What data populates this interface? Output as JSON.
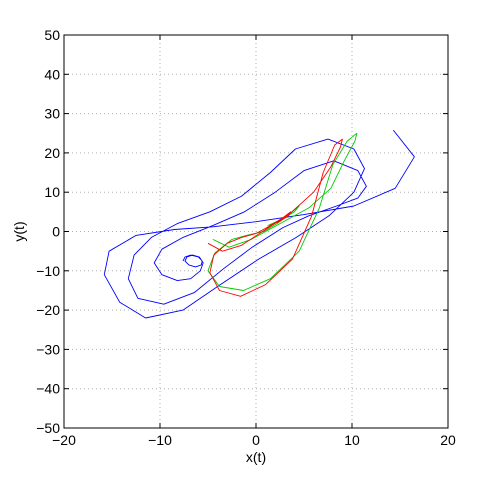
{
  "chart_data": {
    "type": "line",
    "title": "",
    "xlabel": "x(t)",
    "ylabel": "y(t)",
    "xlim": [
      -20,
      20
    ],
    "ylim": [
      -50,
      50
    ],
    "xticks": [
      -20,
      -10,
      0,
      10,
      20
    ],
    "yticks": [
      -50,
      -40,
      -30,
      -20,
      -10,
      0,
      10,
      20,
      30,
      40,
      50
    ],
    "xtick_labels": [
      "−20",
      "−10",
      "0",
      "10",
      "20"
    ],
    "ytick_labels": [
      "−50",
      "−40",
      "−30",
      "−20",
      "−10",
      "0",
      "10",
      "20",
      "30",
      "40",
      "50"
    ],
    "grid": true,
    "series": [
      {
        "color": "#0000ff",
        "x": [
          14.3,
          16.5,
          14.5,
          10.2,
          5.0,
          0.0,
          -4.5,
          -8.5,
          -12.5,
          -15.3,
          -15.8,
          -14.2,
          -11.5,
          -7.6,
          -4.0,
          0.3,
          4.2,
          7.6,
          10.2,
          11.3,
          10.2,
          7.5,
          4.1,
          1.5,
          -1.5,
          -4.8,
          -8.2,
          -10.9,
          -12.7,
          -13.3,
          -12.3,
          -9.6,
          -6.4,
          -3.4,
          -0.4,
          2.8,
          5.5,
          8.4,
          10.6,
          11.5,
          10.6,
          8.1,
          5.0,
          2.0,
          -1.2,
          -4.5,
          -7.6,
          -9.8,
          -10.6,
          -9.8,
          -8.2,
          -6.8,
          -5.8,
          -5.5,
          -5.9,
          -6.6,
          -7.2,
          -7.4,
          -7.0,
          -6.3,
          -5.7,
          -5.6,
          -6.0,
          -6.8,
          -7.4,
          -7.6
        ],
        "y": [
          25.8,
          19.0,
          11.0,
          6.5,
          4.3,
          2.5,
          1.2,
          0.5,
          -1.0,
          -5.0,
          -11.0,
          -18.0,
          -22.0,
          -20.0,
          -14.0,
          -7.0,
          -1.5,
          4.0,
          10.0,
          16.0,
          21.0,
          23.5,
          21.0,
          15.0,
          9.0,
          5.0,
          2.0,
          -1.5,
          -6.0,
          -12.0,
          -17.0,
          -18.5,
          -15.5,
          -9.5,
          -4.0,
          1.0,
          4.0,
          6.5,
          8.5,
          11.5,
          15.5,
          18.0,
          15.5,
          10.0,
          5.0,
          1.5,
          -1.5,
          -4.5,
          -8.0,
          -11.0,
          -12.5,
          -12.0,
          -10.0,
          -8.0,
          -6.5,
          -6.0,
          -6.5,
          -7.5,
          -8.5,
          -9.0,
          -8.5,
          -7.5,
          -6.5,
          -6.0,
          -6.5,
          -7.5
        ]
      },
      {
        "color": "#00cc00",
        "x": [
          -4.5,
          -2.8,
          -0.5,
          2.5,
          5.5,
          7.8,
          9.2,
          10.3,
          10.5,
          9.5,
          8.0,
          6.6,
          4.5,
          1.5,
          -1.3,
          -3.8,
          -5.0,
          -4.3,
          -2.5,
          -1.0,
          0.8,
          2.2,
          3.5,
          4.5,
          4.0,
          2.6,
          1.2
        ],
        "y": [
          -2.0,
          -4.0,
          -2.0,
          2.0,
          6.0,
          11.0,
          18.0,
          23.0,
          25.0,
          23.0,
          17.0,
          6.0,
          -5.0,
          -12.0,
          -15.0,
          -14.0,
          -10.0,
          -5.5,
          -2.0,
          -1.0,
          0.0,
          2.0,
          4.5,
          6.5,
          5.0,
          3.0,
          1.5
        ]
      },
      {
        "color": "#ff0000",
        "x": [
          -5.0,
          -3.5,
          -1.5,
          1.0,
          3.5,
          6.0,
          7.8,
          8.8,
          9.0,
          8.2,
          7.0,
          5.8,
          3.8,
          1.0,
          -1.6,
          -3.8,
          -4.8,
          -4.4,
          -3.0,
          -1.5,
          0.0,
          1.5,
          2.8,
          3.6,
          3.4,
          2.4,
          1.4
        ],
        "y": [
          -3.0,
          -5.0,
          -3.5,
          0.5,
          4.5,
          10.0,
          16.5,
          21.5,
          23.5,
          22.0,
          15.0,
          4.0,
          -7.0,
          -13.5,
          -16.5,
          -15.0,
          -10.5,
          -6.0,
          -3.0,
          -1.5,
          -0.5,
          1.5,
          3.5,
          5.0,
          4.0,
          2.5,
          1.5
        ]
      }
    ]
  }
}
